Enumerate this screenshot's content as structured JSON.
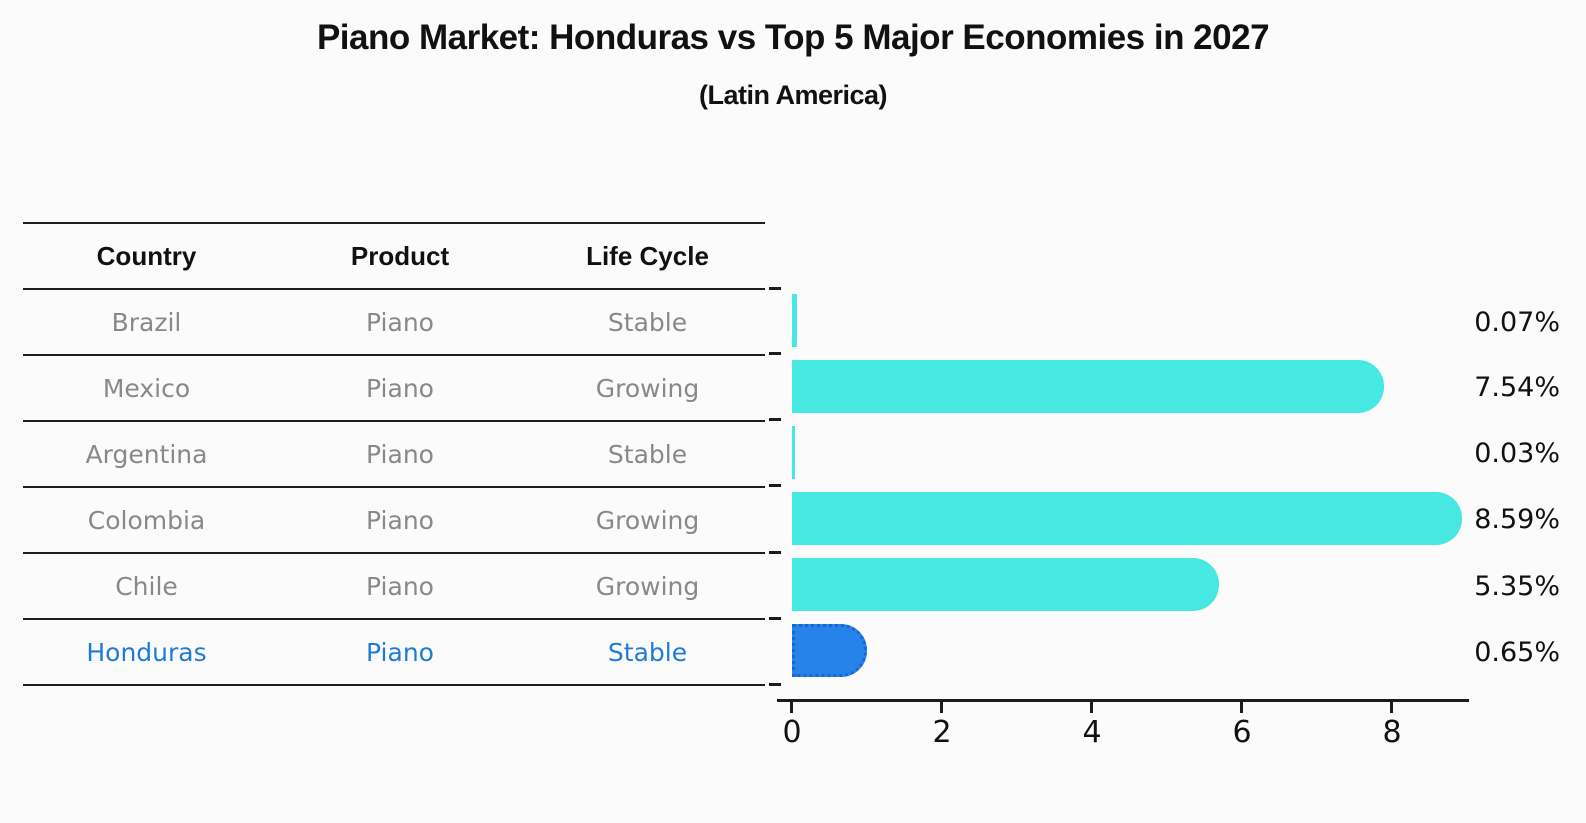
{
  "title": "Piano Market: Honduras vs Top 5 Major Economies in 2027",
  "subtitle": "(Latin America)",
  "colors": {
    "bar": "#47e8e1",
    "highlight_bar": "#2583ea",
    "highlight_bar_border": "#1a66cc",
    "highlight_text": "#1e7cd6",
    "text": "#111111",
    "muted_text": "#898989",
    "line": "#1c1c1c"
  },
  "table": {
    "headers": [
      "Country",
      "Product",
      "Life Cycle"
    ],
    "rows": [
      {
        "country": "Brazil",
        "product": "Piano",
        "life_cycle": "Stable",
        "highlighted": false
      },
      {
        "country": "Mexico",
        "product": "Piano",
        "life_cycle": "Growing",
        "highlighted": false
      },
      {
        "country": "Argentina",
        "product": "Piano",
        "life_cycle": "Stable",
        "highlighted": false
      },
      {
        "country": "Colombia",
        "product": "Piano",
        "life_cycle": "Growing",
        "highlighted": false
      },
      {
        "country": "Chile",
        "product": "Piano",
        "life_cycle": "Growing",
        "highlighted": false
      },
      {
        "country": "Honduras",
        "product": "Piano",
        "life_cycle": "Stable",
        "highlighted": true
      }
    ]
  },
  "chart_data": {
    "type": "bar",
    "orientation": "horizontal",
    "title": "Piano Market: Honduras vs Top 5 Major Economies in 2027",
    "subtitle": "(Latin America)",
    "categories": [
      "Brazil",
      "Mexico",
      "Argentina",
      "Colombia",
      "Chile",
      "Honduras"
    ],
    "values": [
      0.07,
      7.54,
      0.03,
      8.59,
      5.35,
      0.65
    ],
    "labels": [
      "0.07%",
      "7.54%",
      "0.03%",
      "8.59%",
      "5.35%",
      "0.65%"
    ],
    "unit": "%",
    "highlight_category": "Honduras",
    "xlim": [
      0,
      9
    ],
    "x_ticks": [
      "0",
      "2",
      "4",
      "6",
      "8"
    ],
    "grid": false,
    "legend": false
  }
}
